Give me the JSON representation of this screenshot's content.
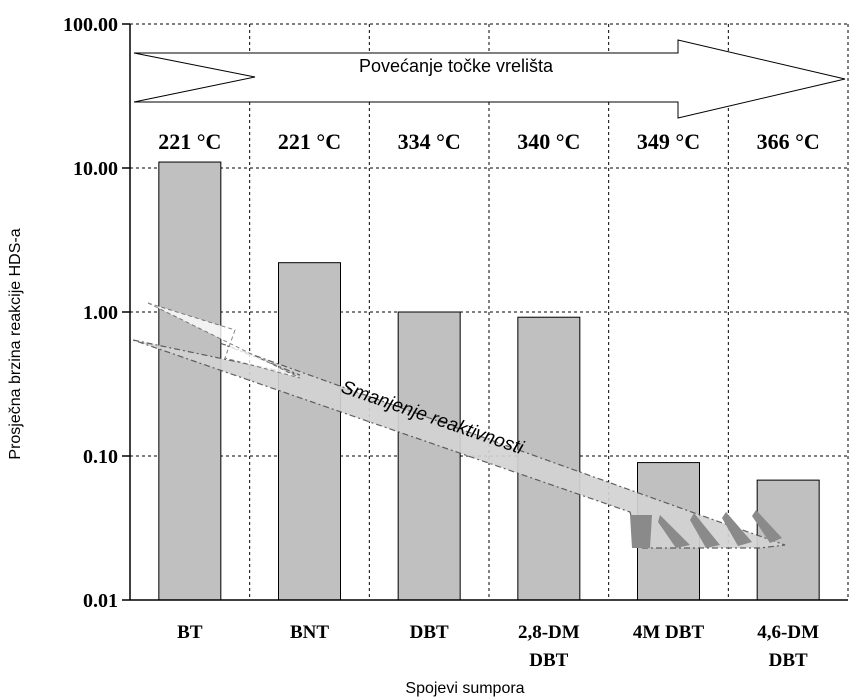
{
  "chart_data": {
    "type": "bar",
    "y_scale": "log",
    "ylim": [
      0.01,
      100
    ],
    "yticks": [
      "0.01",
      "0.10",
      "1.00",
      "10.00",
      "100.00"
    ],
    "ylabel": "Prosječna brzina reakcije HDS-a",
    "xlabel": "Spojevi sumpora",
    "categories": [
      [
        "BT"
      ],
      [
        "BNT"
      ],
      [
        "DBT"
      ],
      [
        "2,8-DM",
        "DBT"
      ],
      [
        "4M DBT"
      ],
      [
        "4,6-DM",
        "DBT"
      ]
    ],
    "values": [
      11.0,
      2.2,
      1.0,
      0.92,
      0.09,
      0.068
    ],
    "boiling_points": [
      "221 °C",
      "221 °C",
      "334 °C",
      "340 °C",
      "349 °C",
      "366 °C"
    ],
    "grid": true,
    "bar_color": "#c0c0c0",
    "annotations": {
      "top_arrow": "Povećanje točke vrelišta",
      "diagonal_arrow": "Smanjenje reaktivnosti"
    }
  }
}
